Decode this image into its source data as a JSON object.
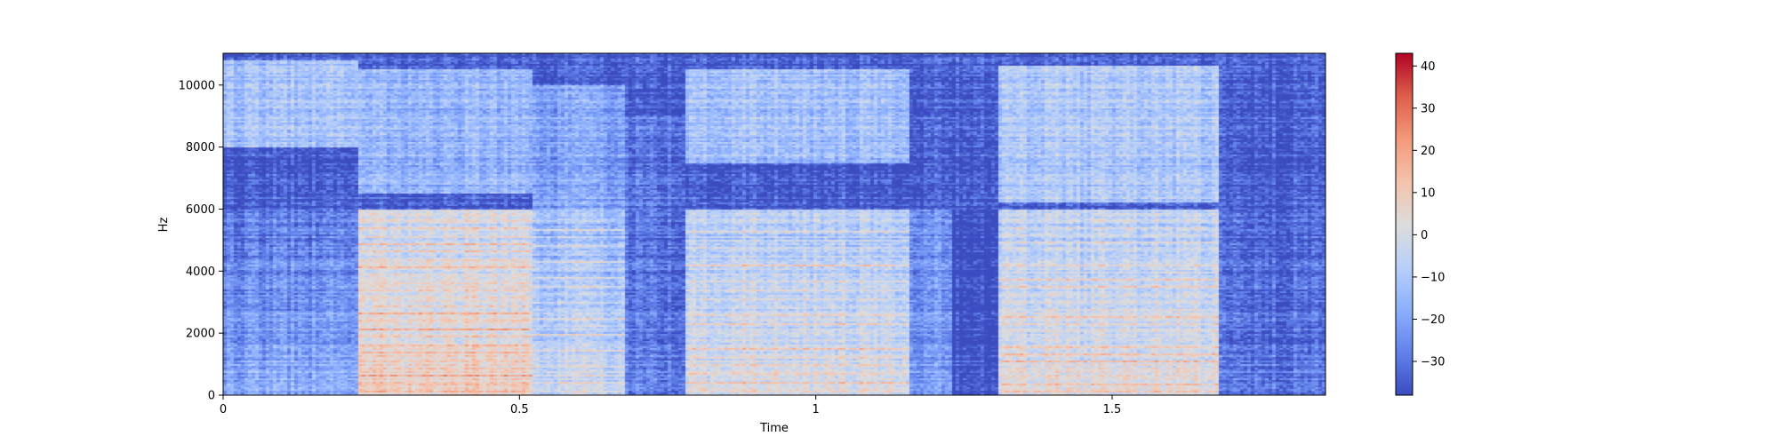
{
  "chart_data": {
    "type": "heatmap",
    "subtype": "spectrogram",
    "title": "",
    "xlabel": "Time",
    "ylabel": "Hz",
    "xlim": [
      0,
      1.86
    ],
    "ylim": [
      0,
      11025
    ],
    "x_ticks": [
      {
        "value": 0,
        "label": "0"
      },
      {
        "value": 0.5,
        "label": "0.5"
      },
      {
        "value": 1,
        "label": "1"
      },
      {
        "value": 1.5,
        "label": "1.5"
      }
    ],
    "y_ticks": [
      {
        "value": 0,
        "label": "0"
      },
      {
        "value": 2000,
        "label": "2000"
      },
      {
        "value": 4000,
        "label": "4000"
      },
      {
        "value": 6000,
        "label": "6000"
      },
      {
        "value": 8000,
        "label": "8000"
      },
      {
        "value": 10000,
        "label": "10000"
      }
    ],
    "colormap": "coolwarm",
    "colorbar": {
      "range": [
        -38,
        43
      ],
      "ticks": [
        {
          "value": 40,
          "label": "40"
        },
        {
          "value": 30,
          "label": "30"
        },
        {
          "value": 20,
          "label": "20"
        },
        {
          "value": 10,
          "label": "10"
        },
        {
          "value": 0,
          "label": "0"
        },
        {
          "value": -10,
          "label": "−10"
        },
        {
          "value": -20,
          "label": "−20"
        },
        {
          "value": -30,
          "label": "−30"
        }
      ]
    },
    "segments": [
      {
        "t0": 0.0,
        "t1": 0.23,
        "low_db": -18,
        "high_db": -12,
        "high_band": [
          8000,
          10800
        ],
        "harmonic_f0": 0
      },
      {
        "t0": 0.23,
        "t1": 0.52,
        "low_db": 12,
        "high_db": -15,
        "high_band": [
          6500,
          10500
        ],
        "harmonic_f0": 250
      },
      {
        "t0": 0.52,
        "t1": 0.68,
        "low_db": 0,
        "high_db": -20,
        "high_band": [
          6000,
          10000
        ],
        "harmonic_f0": 260
      },
      {
        "t0": 0.68,
        "t1": 0.78,
        "low_db": -28,
        "high_db": -30,
        "high_band": [
          6000,
          9000
        ],
        "harmonic_f0": 0
      },
      {
        "t0": 0.78,
        "t1": 1.16,
        "low_db": 5,
        "high_db": -12,
        "high_band": [
          7500,
          10500
        ],
        "harmonic_f0": 270
      },
      {
        "t0": 1.16,
        "t1": 1.23,
        "low_db": -22,
        "high_db": -34,
        "high_band": [
          7000,
          9000
        ],
        "harmonic_f0": 0
      },
      {
        "t0": 1.23,
        "t1": 1.31,
        "low_db": -37,
        "high_db": -37,
        "high_band": [
          0,
          0
        ],
        "harmonic_f0": 0
      },
      {
        "t0": 1.31,
        "t1": 1.68,
        "low_db": 6,
        "high_db": -10,
        "high_band": [
          6200,
          10600
        ],
        "harmonic_f0": 240
      },
      {
        "t0": 1.68,
        "t1": 1.86,
        "low_db": -30,
        "high_db": -36,
        "high_band": [
          3000,
          5000
        ],
        "harmonic_f0": 0
      }
    ],
    "grid": false,
    "legend": "none"
  }
}
